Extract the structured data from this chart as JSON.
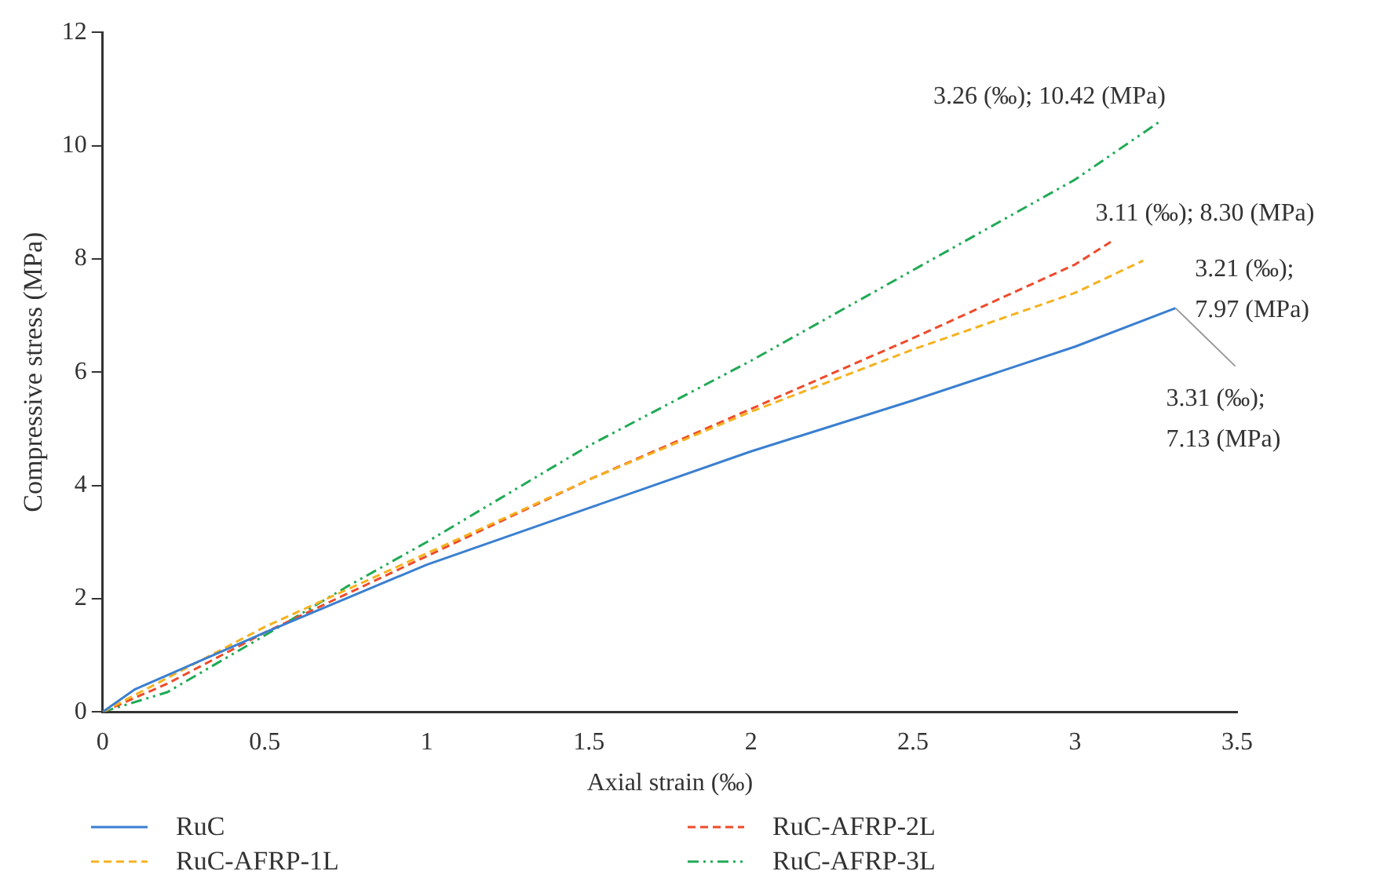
{
  "chart_data": {
    "type": "line",
    "xlabel": "Axial strain (‰)",
    "ylabel": "Compressive stress (MPa)",
    "xlim": [
      0,
      3.5
    ],
    "xticks": [
      0,
      0.5,
      1,
      1.5,
      2,
      2.5,
      3,
      3.5
    ],
    "ylim": [
      0,
      12
    ],
    "yticks": [
      0,
      2,
      4,
      6,
      8,
      10,
      12
    ],
    "grid": false,
    "legend": "bottom",
    "marker": "none",
    "series": [
      {
        "name": "RuC",
        "color": "#3a7fd0",
        "line_style": "solid",
        "x": [
          0,
          0.1,
          0.2,
          0.5,
          1,
          1.5,
          2,
          2.5,
          3,
          3.31
        ],
        "values": [
          0,
          0.4,
          0.65,
          1.4,
          2.6,
          3.6,
          4.6,
          5.5,
          6.45,
          7.13
        ]
      },
      {
        "name": "RuC-AFRP-1L",
        "color": "#f5b21e",
        "line_style": "dashed",
        "x": [
          0,
          0.2,
          0.5,
          1,
          1.5,
          2,
          2.5,
          3,
          3.21
        ],
        "values": [
          0,
          0.6,
          1.5,
          2.8,
          4.1,
          5.3,
          6.4,
          7.4,
          7.97
        ]
      },
      {
        "name": "RuC-AFRP-2L",
        "color": "#ee4a2a",
        "line_style": "dashed",
        "x": [
          0,
          0.2,
          0.5,
          1,
          1.5,
          2,
          2.5,
          3,
          3.11
        ],
        "values": [
          0,
          0.5,
          1.4,
          2.75,
          4.1,
          5.35,
          6.6,
          7.9,
          8.3
        ]
      },
      {
        "name": "RuC-AFRP-3L",
        "color": "#1faa55",
        "line_style": "dotted",
        "x": [
          0,
          0.2,
          0.5,
          0.75,
          1,
          1.5,
          2,
          2.5,
          3,
          3.26
        ],
        "values": [
          0,
          0.35,
          1.35,
          2.2,
          3.0,
          4.7,
          6.2,
          7.8,
          9.4,
          10.42
        ]
      }
    ],
    "annotations": [
      {
        "text": "3.26 (‰); 10.42 (MPa)",
        "x": 3.26,
        "y": 10.42
      },
      {
        "text": "3.11 (‰); 8.30 (MPa)",
        "x": 3.11,
        "y": 8.3
      },
      {
        "text": "3.21 (‰); 7.97 (MPa)",
        "x": 3.21,
        "y": 7.97
      },
      {
        "text": "3.31 (‰); 7.13 (MPa)",
        "x": 3.31,
        "y": 7.13
      }
    ]
  }
}
